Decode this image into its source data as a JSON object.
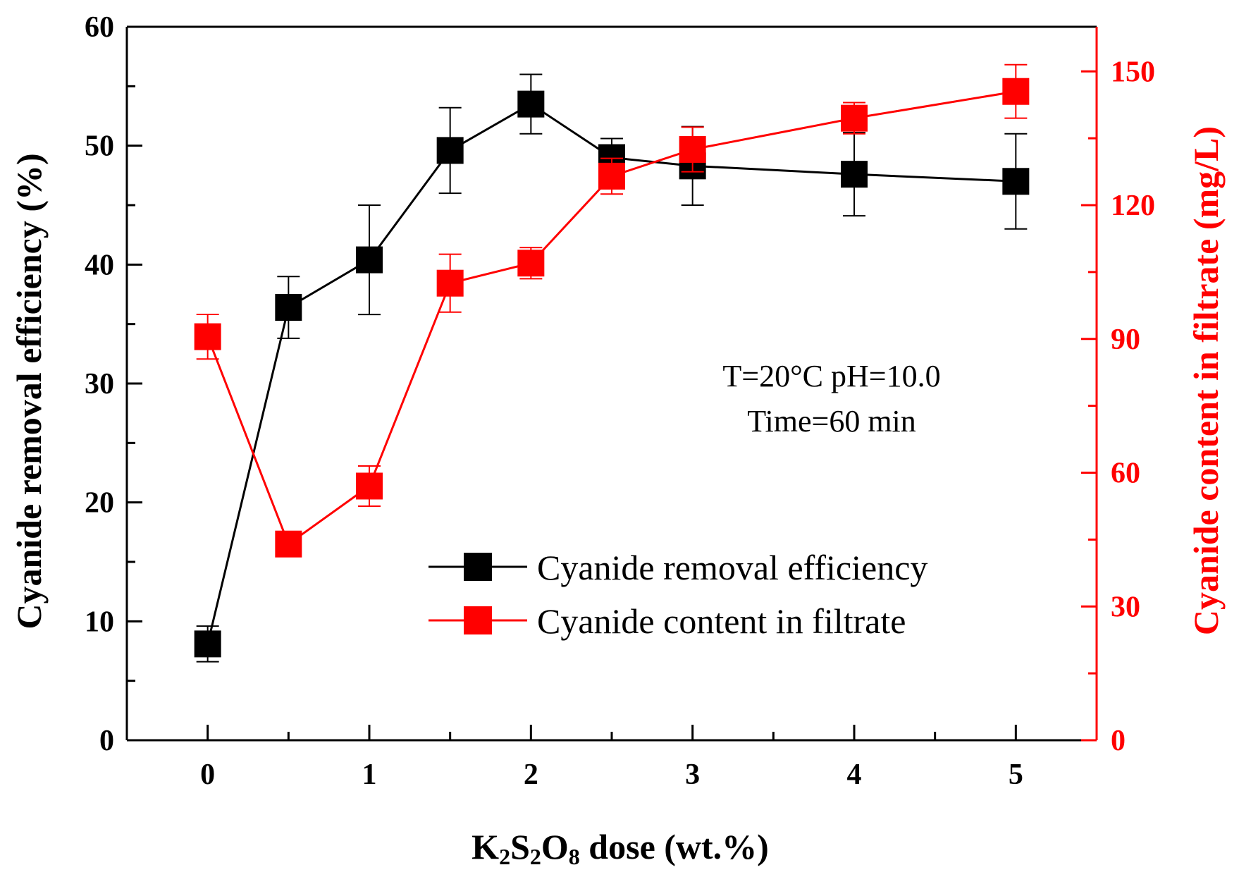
{
  "chart_data": {
    "type": "line",
    "x": [
      0,
      0.5,
      1,
      1.5,
      2,
      2.5,
      3,
      4,
      5
    ],
    "x_ticks": [
      0,
      1,
      2,
      3,
      4,
      5
    ],
    "x_minor_ticks": [
      0.5,
      1.5,
      2.5,
      3.5,
      4.5
    ],
    "xlim": [
      -0.5,
      5.5
    ],
    "xlabel": "K2S2O8 dose (wt.%)",
    "xlabel_parts": {
      "k": "K",
      "s1": "2",
      "s": "S",
      "s2": "2",
      "o": "O",
      "s3": "8",
      "rest": " dose (wt.%)"
    },
    "ylabel": "Cyanide removal efficiency (%)",
    "ylim": [
      0,
      60
    ],
    "y_ticks": [
      0,
      10,
      20,
      30,
      40,
      50,
      60
    ],
    "y2label": "Cyanide content in filtrate (mg/L)",
    "y2lim": [
      0,
      160
    ],
    "y2_ticks": [
      0,
      30,
      60,
      90,
      120,
      150
    ],
    "grid": false,
    "legend_position": "lower-right",
    "annotations": [
      "T=20°C  pH=10.0",
      "Time=60 min"
    ],
    "series": [
      {
        "name": "Cyanide removal efficiency",
        "axis": "left",
        "color": "#000000",
        "values": [
          8.1,
          36.4,
          40.4,
          49.6,
          53.5,
          49.0,
          48.3,
          47.6,
          47.0
        ],
        "errors": [
          1.5,
          2.6,
          4.6,
          3.6,
          2.5,
          1.6,
          3.3,
          3.5,
          4.0
        ]
      },
      {
        "name": "Cyanide content in filtrate",
        "axis": "right",
        "color": "#ff0000",
        "values": [
          90.5,
          44.0,
          57.0,
          102.5,
          107.0,
          126.5,
          132.5,
          139.5,
          145.5
        ],
        "errors": [
          5.0,
          2.5,
          4.5,
          6.5,
          3.5,
          4.0,
          5.0,
          3.5,
          6.0
        ]
      }
    ]
  }
}
